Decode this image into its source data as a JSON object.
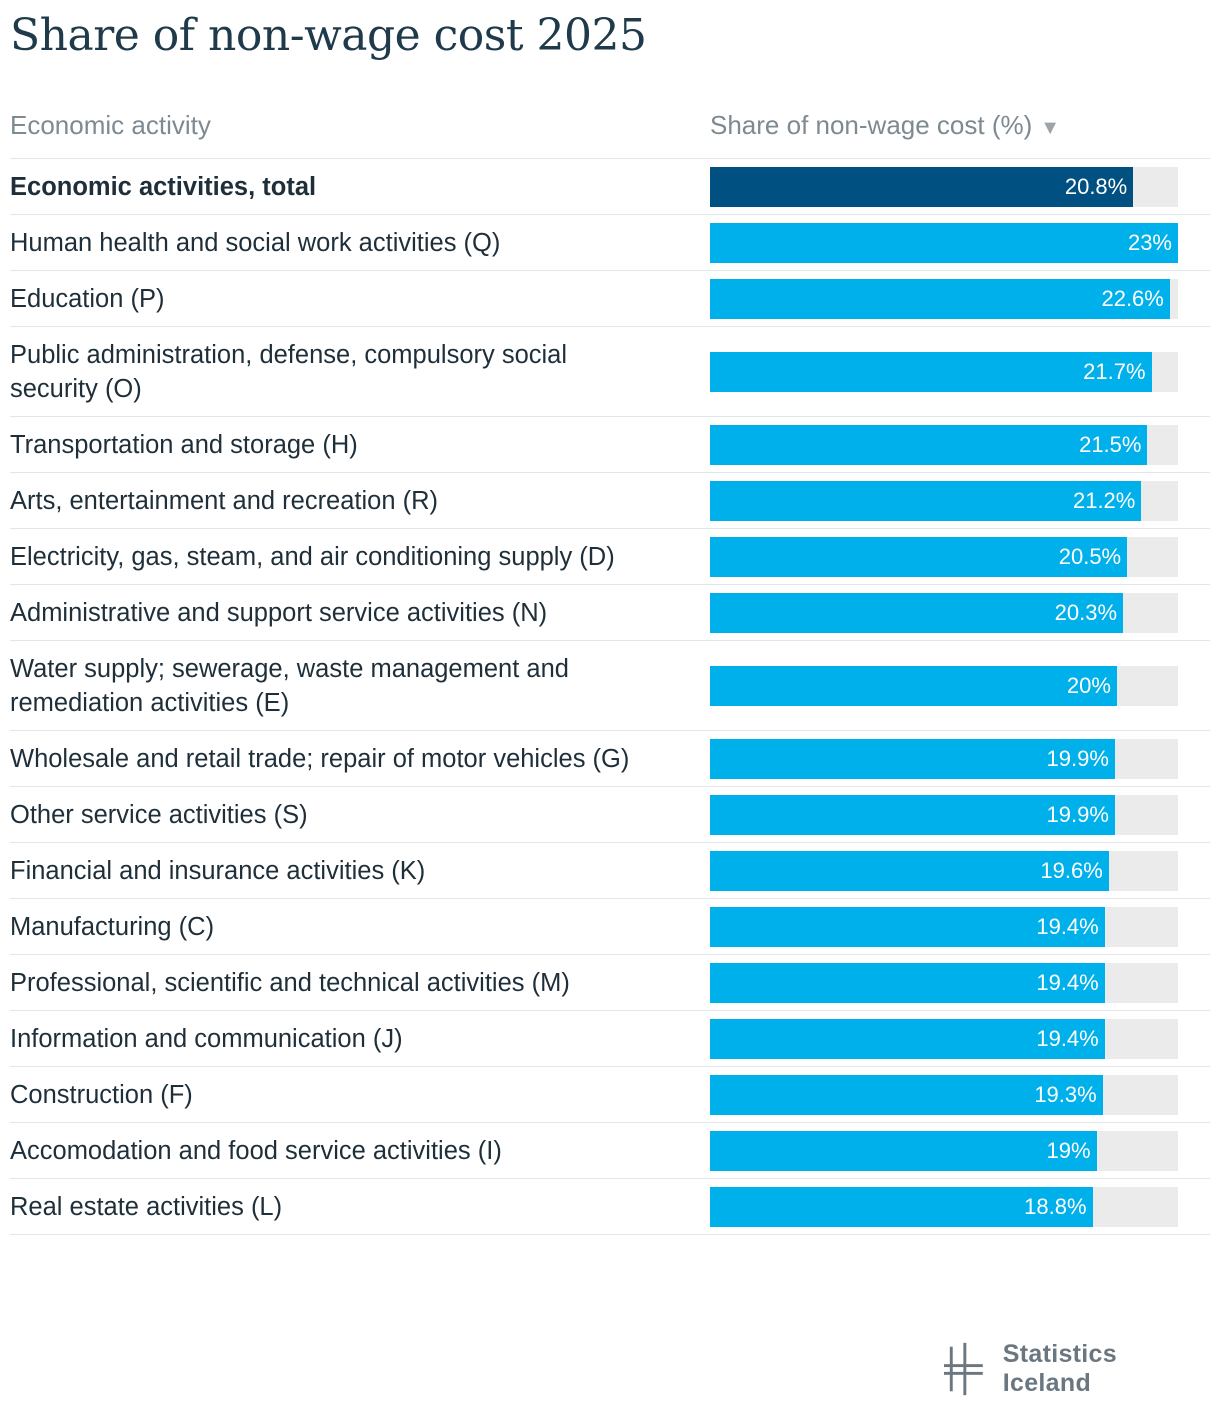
{
  "title": "Share of non-wage cost 2025",
  "header": {
    "left": "Economic activity",
    "right": "Share of non-wage cost (%)",
    "sort_icon": "sort-descending-icon"
  },
  "colors": {
    "total_bar": "#005081",
    "bar": "#00b0ea",
    "track": "#ebebeb"
  },
  "logo": {
    "text": "Statistics Iceland"
  },
  "chart_data": {
    "type": "bar",
    "orientation": "horizontal",
    "title": "Share of non-wage cost 2025",
    "xlabel": "Share of non-wage cost (%)",
    "ylabel": "Economic activity",
    "xlim": [
      0,
      23
    ],
    "categories": [
      "Economic activities, total",
      "Human health and social work activities (Q)",
      "Education (P)",
      "Public administration, defense, compulsory social security (O)",
      "Transportation and storage (H)",
      "Arts, entertainment and recreation (R)",
      "Electricity, gas, steam, and air conditioning supply (D)",
      "Administrative and support service activities (N)",
      "Water supply; sewerage, waste management and remediation activities (E)",
      "Wholesale and retail trade; repair of motor vehicles (G)",
      "Other service activities (S)",
      "Financial and insurance activities (K)",
      "Manufacturing (C)",
      "Professional, scientific and technical activities (M)",
      "Information and communication (J)",
      "Construction (F)",
      "Accomodation and food service activities (I)",
      "Real estate activities (L)"
    ],
    "values": [
      20.8,
      23,
      22.6,
      21.7,
      21.5,
      21.2,
      20.5,
      20.3,
      20,
      19.9,
      19.9,
      19.6,
      19.4,
      19.4,
      19.4,
      19.3,
      19,
      18.8
    ],
    "value_labels": [
      "20.8%",
      "23%",
      "22.6%",
      "21.7%",
      "21.5%",
      "21.2%",
      "20.5%",
      "20.3%",
      "20%",
      "19.9%",
      "19.9%",
      "19.6%",
      "19.4%",
      "19.4%",
      "19.4%",
      "19.3%",
      "19%",
      "18.8%"
    ],
    "highlight_index": 0
  }
}
